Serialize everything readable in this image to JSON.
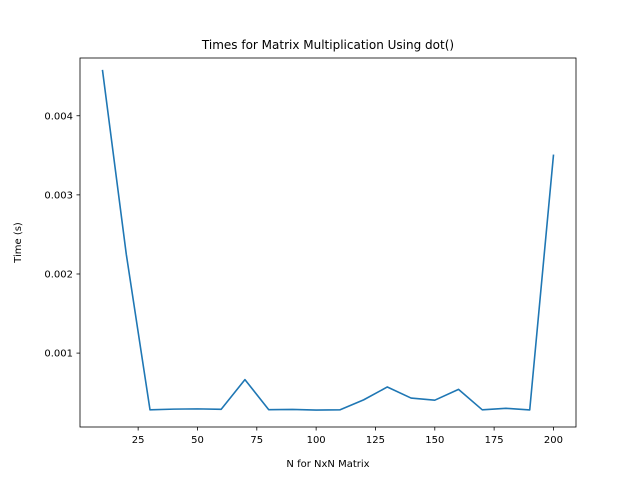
{
  "chart_data": {
    "type": "line",
    "title": "Times for Matrix Multiplication Using dot()",
    "xlabel": "N for NxN Matrix",
    "ylabel": "Time (s)",
    "xlim": [
      0.5,
      209.5
    ],
    "ylim": [
      6.6e-05,
      0.00473
    ],
    "xticks": [
      25,
      50,
      75,
      100,
      125,
      150,
      175,
      200
    ],
    "yticks": [
      0.001,
      0.002,
      0.003,
      0.004
    ],
    "ytick_labels": [
      "0.001",
      "0.002",
      "0.003",
      "0.004"
    ],
    "grid": false,
    "line_color": "#1f77b4",
    "series": [
      {
        "x": [
          10,
          20,
          30,
          40,
          50,
          60,
          70,
          80,
          90,
          100,
          110,
          120,
          130,
          140,
          150,
          160,
          170,
          180,
          190,
          200
        ],
        "values": [
          0.00457,
          0.00225,
          0.000283,
          0.000292,
          0.000295,
          0.00029,
          0.000665,
          0.000285,
          0.000288,
          0.00028,
          0.000283,
          0.000409,
          0.000572,
          0.000432,
          0.000405,
          0.000542,
          0.000283,
          0.000302,
          0.000282,
          0.0035
        ]
      }
    ]
  }
}
